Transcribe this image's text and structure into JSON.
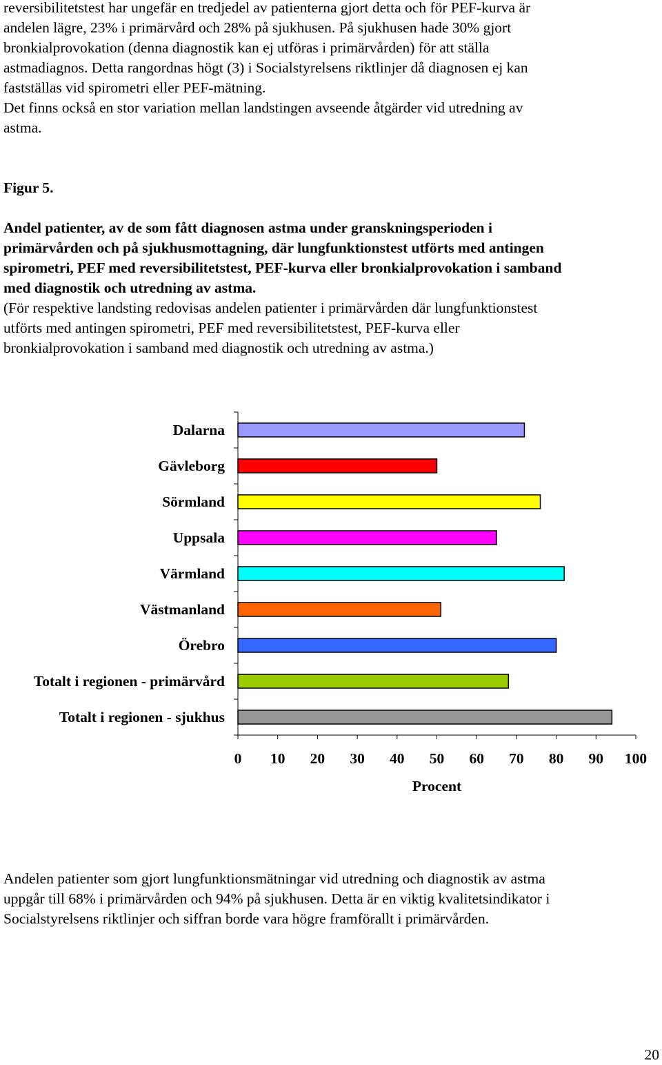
{
  "intro": {
    "lines": [
      "reversibilitetstest har ungefär en tredjedel av patienterna gjort detta och för PEF-kurva är",
      "andelen lägre, 23% i primärvård och 28% på sjukhusen. På sjukhusen hade 30% gjort",
      "bronkialprovokation (denna diagnostik kan ej utföras i primärvården) för att ställa",
      "astmadiagnos. Detta rangordnas högt (3) i Socialstyrelsens riktlinjer då diagnosen ej kan",
      "fastställas vid spirometri eller PEF-mätning.",
      "Det finns också en stor variation mellan landstingen avseende åtgärder vid utredning av",
      "astma."
    ]
  },
  "figure": {
    "label": "Figur 5.",
    "caption_bold_lines": [
      "Andel patienter, av de som fått diagnosen astma under granskningsperioden i",
      "primärvården och på sjukhusmottagning, där lungfunktionstest utförts med antingen",
      "spirometri, PEF med reversibilitetstest, PEF-kurva eller bronkialprovokation i samband",
      "med diagnostik och utredning av astma."
    ],
    "caption_note_lines": [
      "(För respektive landsting redovisas andelen patienter i primärvården där lungfunktionstest",
      "utförts med antingen spirometri, PEF med reversibilitetstest, PEF-kurva eller",
      "bronkialprovokation i samband med diagnostik och utredning av astma.)"
    ]
  },
  "chart_data": {
    "type": "bar",
    "orientation": "horizontal",
    "categories": [
      "Dalarna",
      "Gävleborg",
      "Sörmland",
      "Uppsala",
      "Värmland",
      "Västmanland",
      "Örebro",
      "Totalt i regionen - primärvård",
      "Totalt i regionen - sjukhus"
    ],
    "values": [
      72,
      50,
      76,
      65,
      82,
      51,
      80,
      68,
      94
    ],
    "colors": [
      "#9999ff",
      "#ff0000",
      "#ffff00",
      "#ff00ff",
      "#00ffff",
      "#ff6600",
      "#3366ff",
      "#99cc00",
      "#969696"
    ],
    "xlabel": "Procent",
    "xlim": [
      0,
      100
    ],
    "xticks": [
      0,
      10,
      20,
      30,
      40,
      50,
      60,
      70,
      80,
      90,
      100
    ],
    "grid": false,
    "legend": "none"
  },
  "outro": {
    "lines": [
      "Andelen patienter som gjort lungfunktionsmätningar vid utredning och diagnostik av astma",
      "uppgår till 68% i primärvården och 94% på sjukhusen. Detta är en viktig kvalitetsindikator i",
      "Socialstyrelsens riktlinjer och siffran borde vara högre framförallt i primärvården."
    ]
  },
  "page_number": "20"
}
